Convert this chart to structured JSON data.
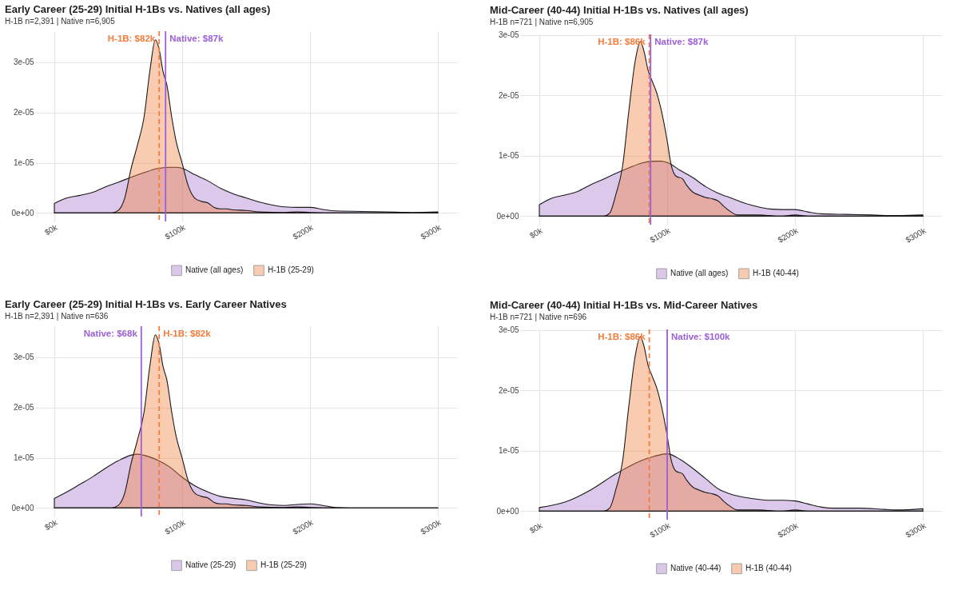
{
  "chart_data": [
    {
      "type": "area",
      "title": "Early Career (25-29) Initial H-1Bs vs. Natives (all ages)",
      "subtitle": "H-1B n=2,391 | Native n=6,905",
      "series": [
        {
          "name": "Native (all ages)",
          "color": "#a776cb",
          "x": [
            0,
            10000,
            20000,
            30000,
            40000,
            50000,
            60000,
            70000,
            80000,
            90000,
            95000,
            100000,
            110000,
            120000,
            130000,
            140000,
            150000,
            160000,
            170000,
            180000,
            190000,
            200000,
            210000,
            220000,
            240000,
            260000,
            280000,
            300000
          ],
          "values": [
            1.9e-06,
            3e-06,
            3.5e-06,
            4.1e-06,
            5.2e-06,
            6.1e-06,
            7.1e-06,
            8e-06,
            8.8e-06,
            9.1e-06,
            9.1e-06,
            8.9e-06,
            7.6e-06,
            6.4e-06,
            4.9e-06,
            3.8e-06,
            3e-06,
            2.2e-06,
            1.6e-06,
            1.2e-06,
            1.1e-06,
            1.1e-06,
            7e-07,
            4e-07,
            3e-07,
            2e-07,
            1e-07,
            2e-07
          ]
        },
        {
          "name": "H-1B (25-29)",
          "color": "#f07d3a",
          "x": [
            0,
            45000,
            50000,
            55000,
            60000,
            65000,
            70000,
            75000,
            79000,
            82000,
            85000,
            88000,
            92000,
            95000,
            100000,
            105000,
            110000,
            115000,
            120000,
            125000,
            130000,
            135000,
            140000,
            150000,
            160000,
            180000,
            190000,
            200000,
            220000,
            300000
          ],
          "values": [
            0,
            0,
            5e-07,
            2.9e-06,
            8.8e-06,
            1.35e-05,
            1.88e-05,
            2.88e-05,
            3.45e-05,
            3.26e-05,
            2.82e-05,
            2.55e-05,
            1.88e-05,
            1.46e-05,
            9.9e-06,
            5.2e-06,
            2.9e-06,
            2.3e-06,
            2e-06,
            1.1e-06,
            8e-07,
            8e-07,
            6e-07,
            5e-07,
            2e-07,
            1e-07,
            2e-07,
            1e-07,
            0,
            0
          ]
        }
      ],
      "xlim": [
        -15000,
        315000
      ],
      "xticks": [
        {
          "value": 0,
          "label": "$0k"
        },
        {
          "value": 100000,
          "label": "$100k"
        },
        {
          "value": 200000,
          "label": "$200k"
        },
        {
          "value": 300000,
          "label": "$300k"
        }
      ],
      "ylim": [
        -1.7e-06,
        3.62e-05
      ],
      "yticks": [
        {
          "value": 0,
          "label": "0e+00"
        },
        {
          "value": 1e-05,
          "label": "1e-05"
        },
        {
          "value": 2e-05,
          "label": "2e-05"
        },
        {
          "value": 3e-05,
          "label": "3e-05"
        }
      ],
      "ref_lines": [
        {
          "axis": "x",
          "value": 82000,
          "label": "H-1B: $82k",
          "color": "#f47c3c",
          "line_style": "dashed"
        },
        {
          "axis": "x",
          "value": 87000,
          "label": "Native: $87k",
          "color": "#9b5fd8",
          "line_style": "solid"
        }
      ],
      "grid": true,
      "legend": "bottom"
    },
    {
      "type": "area",
      "title": "Mid-Career (40-44) Initial H-1Bs vs. Natives (all ages)",
      "subtitle": "H-1B n=721 | Native n=6,905",
      "series": [
        {
          "name": "Native (all ages)",
          "color": "#a776cb",
          "x": [
            0,
            10000,
            20000,
            30000,
            40000,
            50000,
            60000,
            70000,
            80000,
            90000,
            95000,
            100000,
            110000,
            120000,
            130000,
            140000,
            150000,
            160000,
            170000,
            180000,
            190000,
            200000,
            210000,
            220000,
            240000,
            260000,
            280000,
            300000
          ],
          "values": [
            1.9e-06,
            3e-06,
            3.5e-06,
            4.1e-06,
            5.2e-06,
            6.1e-06,
            7.1e-06,
            8e-06,
            8.8e-06,
            9.1e-06,
            9.1e-06,
            8.9e-06,
            7.6e-06,
            6.4e-06,
            4.9e-06,
            3.8e-06,
            3e-06,
            2.2e-06,
            1.6e-06,
            1.2e-06,
            1.1e-06,
            1.1e-06,
            7e-07,
            4e-07,
            3e-07,
            2e-07,
            1e-07,
            2e-07
          ]
        },
        {
          "name": "H-1B (40-44)",
          "color": "#f07d3a",
          "x": [
            0,
            50000,
            55000,
            60000,
            65000,
            70000,
            75000,
            79000,
            82000,
            85000,
            88000,
            92000,
            95000,
            100000,
            103000,
            107000,
            112000,
            115000,
            120000,
            125000,
            130000,
            135000,
            140000,
            145000,
            150000,
            155000,
            170000,
            180000,
            190000,
            200000,
            210000,
            300000
          ],
          "values": [
            0,
            0,
            5e-07,
            3.7e-06,
            8.1e-06,
            1.74e-05,
            2.57e-05,
            2.89e-05,
            2.72e-05,
            2.42e-05,
            2.25e-05,
            2.03e-05,
            1.79e-05,
            1.25e-05,
            8.6e-06,
            6.6e-06,
            6.2e-06,
            5.2e-06,
            4e-06,
            3.5e-06,
            3.1e-06,
            2.9e-06,
            2.5e-06,
            1.5e-06,
            7e-07,
            2e-07,
            2e-07,
            1e-07,
            0,
            2e-07,
            0,
            0
          ]
        }
      ],
      "xlim": [
        -15000,
        315000
      ],
      "xticks": [
        {
          "value": 0,
          "label": "$0k"
        },
        {
          "value": 100000,
          "label": "$100k"
        },
        {
          "value": 200000,
          "label": "$200k"
        },
        {
          "value": 300000,
          "label": "$300k"
        }
      ],
      "ylim": [
        -1.4e-06,
        3.01e-05
      ],
      "yticks": [
        {
          "value": 0,
          "label": "0e+00"
        },
        {
          "value": 1e-05,
          "label": "1e-05"
        },
        {
          "value": 2e-05,
          "label": "2e-05"
        },
        {
          "value": 3e-05,
          "label": "3e-05"
        }
      ],
      "ref_lines": [
        {
          "axis": "x",
          "value": 86000,
          "label": "H-1B: $86k",
          "color": "#f47c3c",
          "line_style": "dashed"
        },
        {
          "axis": "x",
          "value": 87000,
          "label": "Native: $87k",
          "color": "#9b5fd8",
          "line_style": "solid"
        }
      ],
      "grid": true,
      "legend": "bottom"
    },
    {
      "type": "area",
      "title": "Early Career (25-29) Initial H-1Bs vs. Early Career Natives",
      "subtitle": "H-1B n=2,391 | Native n=636",
      "series": [
        {
          "name": "Native (25-29)",
          "color": "#a776cb",
          "x": [
            0,
            10000,
            20000,
            30000,
            40000,
            50000,
            60000,
            65000,
            70000,
            80000,
            90000,
            100000,
            110000,
            120000,
            130000,
            140000,
            150000,
            160000,
            170000,
            180000,
            190000,
            200000,
            210000,
            220000,
            240000,
            300000
          ],
          "values": [
            1.9e-06,
            3.2e-06,
            4.7e-06,
            6.2e-06,
            7.9e-06,
            9.4e-06,
            1.05e-05,
            1.07e-05,
            1.05e-05,
            9.6e-06,
            8.2e-06,
            6.1e-06,
            4.4e-06,
            3.2e-06,
            2.3e-06,
            1.9e-06,
            1.6e-06,
            1e-06,
            6e-07,
            5e-07,
            7e-07,
            8e-07,
            5e-07,
            1e-07,
            0,
            0
          ]
        },
        {
          "name": "H-1B (25-29)",
          "color": "#f07d3a",
          "x": [
            0,
            45000,
            50000,
            55000,
            60000,
            65000,
            70000,
            75000,
            79000,
            82000,
            85000,
            88000,
            92000,
            95000,
            100000,
            105000,
            110000,
            115000,
            120000,
            125000,
            130000,
            135000,
            140000,
            150000,
            160000,
            180000,
            190000,
            200000,
            220000,
            300000
          ],
          "values": [
            0,
            0,
            5e-07,
            2.9e-06,
            8.8e-06,
            1.35e-05,
            1.88e-05,
            2.88e-05,
            3.45e-05,
            3.26e-05,
            2.82e-05,
            2.55e-05,
            1.88e-05,
            1.46e-05,
            9.9e-06,
            5.2e-06,
            2.9e-06,
            2.3e-06,
            2e-06,
            1.1e-06,
            8e-07,
            8e-07,
            6e-07,
            5e-07,
            2e-07,
            1e-07,
            2e-07,
            1e-07,
            0,
            0
          ]
        }
      ],
      "xlim": [
        -15000,
        315000
      ],
      "xticks": [
        {
          "value": 0,
          "label": "$0k"
        },
        {
          "value": 100000,
          "label": "$100k"
        },
        {
          "value": 200000,
          "label": "$200k"
        },
        {
          "value": 300000,
          "label": "$300k"
        }
      ],
      "ylim": [
        -1.7e-06,
        3.62e-05
      ],
      "yticks": [
        {
          "value": 0,
          "label": "0e+00"
        },
        {
          "value": 1e-05,
          "label": "1e-05"
        },
        {
          "value": 2e-05,
          "label": "2e-05"
        },
        {
          "value": 3e-05,
          "label": "3e-05"
        }
      ],
      "ref_lines": [
        {
          "axis": "x",
          "value": 82000,
          "label": "H-1B: $82k",
          "color": "#f47c3c",
          "line_style": "dashed"
        },
        {
          "axis": "x",
          "value": 68000,
          "label": "Native: $68k",
          "color": "#9b5fd8",
          "line_style": "solid"
        }
      ],
      "grid": true,
      "legend": "bottom"
    },
    {
      "type": "area",
      "title": "Mid-Career (40-44) Initial H-1Bs vs. Mid-Career Natives",
      "subtitle": "H-1B n=721 | Native n=696",
      "series": [
        {
          "name": "Native (40-44)",
          "color": "#a776cb",
          "x": [
            0,
            20000,
            40000,
            60000,
            80000,
            90000,
            100000,
            110000,
            120000,
            130000,
            140000,
            150000,
            160000,
            170000,
            180000,
            190000,
            200000,
            210000,
            220000,
            230000,
            250000,
            270000,
            280000,
            300000
          ],
          "values": [
            6e-07,
            1.5e-06,
            3.5e-06,
            6.2e-06,
            8.4e-06,
            9.1e-06,
            9.5e-06,
            8.6e-06,
            7.1e-06,
            5.4e-06,
            3.7e-06,
            2.8e-06,
            2.3e-06,
            2e-06,
            1.8e-06,
            1.8e-06,
            1.7e-06,
            1.2e-06,
            7e-07,
            5e-07,
            5e-07,
            3e-07,
            2e-07,
            4e-07
          ]
        },
        {
          "name": "H-1B (40-44)",
          "color": "#f07d3a",
          "x": [
            0,
            50000,
            55000,
            60000,
            65000,
            70000,
            75000,
            79000,
            82000,
            85000,
            88000,
            92000,
            95000,
            100000,
            103000,
            107000,
            112000,
            115000,
            120000,
            125000,
            130000,
            135000,
            140000,
            145000,
            150000,
            155000,
            170000,
            180000,
            190000,
            200000,
            210000,
            300000
          ],
          "values": [
            0,
            0,
            5e-07,
            3.7e-06,
            8.1e-06,
            1.74e-05,
            2.57e-05,
            2.89e-05,
            2.72e-05,
            2.42e-05,
            2.25e-05,
            2.03e-05,
            1.79e-05,
            1.25e-05,
            8.6e-06,
            6.6e-06,
            6.2e-06,
            5.2e-06,
            4e-06,
            3.5e-06,
            3.1e-06,
            2.9e-06,
            2.5e-06,
            1.5e-06,
            7e-07,
            2e-07,
            2e-07,
            1e-07,
            0,
            2e-07,
            0,
            0
          ]
        }
      ],
      "xlim": [
        -15000,
        315000
      ],
      "xticks": [
        {
          "value": 0,
          "label": "$0k"
        },
        {
          "value": 100000,
          "label": "$100k"
        },
        {
          "value": 200000,
          "label": "$200k"
        },
        {
          "value": 300000,
          "label": "$300k"
        }
      ],
      "ylim": [
        -1.4e-06,
        3.01e-05
      ],
      "yticks": [
        {
          "value": 0,
          "label": "0e+00"
        },
        {
          "value": 1e-05,
          "label": "1e-05"
        },
        {
          "value": 2e-05,
          "label": "2e-05"
        },
        {
          "value": 3e-05,
          "label": "3e-05"
        }
      ],
      "ref_lines": [
        {
          "axis": "x",
          "value": 86000,
          "label": "H-1B: $86k",
          "color": "#f47c3c",
          "line_style": "dashed"
        },
        {
          "axis": "x",
          "value": 100000,
          "label": "Native: $100k",
          "color": "#9b5fd8",
          "line_style": "solid"
        }
      ],
      "grid": true,
      "legend": "bottom"
    }
  ]
}
